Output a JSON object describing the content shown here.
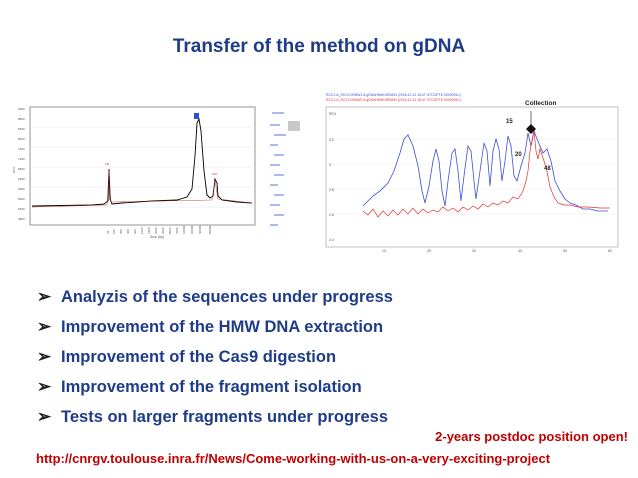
{
  "slide": {
    "title": "Transfer of the method on gDNA",
    "bullets": [
      "Analyzis of the sequences under progress",
      "Improvement of the HMW DNA extraction",
      "Improvement of the Cas9 digestion",
      "Improvement of the fragment isolation",
      "Tests on larger fragments under progress"
    ],
    "notice": "2-years postdoc position open!",
    "link": "http://cnrgv.toulouse.inra.fr/News/Come-working-with-us-on-a-very-exciting-project",
    "colors": {
      "title": "#1f3c88",
      "notice": "#c00000",
      "bullet_marker": "#1f1f1f"
    },
    "bullet_marker_icon": "arrow-bullet-icon"
  },
  "figure_right": {
    "collection_label": "Collection",
    "peak_labels": [
      "15",
      "20",
      "48"
    ],
    "legend_lines": [
      "RCC1-A_RCC1VHMW1 A.gDNAHMW.DE9AIN (2018-12-12 18:47 GTCOPTE-0000091C)",
      "RCC1-A_RCC1VHMW2 A.gDNAHMW.DE9AIN (2018-12-12 18:47 GTCOPTE-0000091C)"
    ],
    "y_ticks": [
      "3.2",
      "3",
      "2.8",
      "2.6",
      "2.4"
    ],
    "x_ticks": [
      "10",
      "20",
      "30",
      "40",
      "50",
      "60"
    ],
    "y_unit": "RFU",
    "series_colors": [
      "#3b4fd8",
      "#e03030"
    ]
  },
  "figure_left": {
    "y_unit": "RFU",
    "x_label": "Size (bp)",
    "trace_color": "#000000",
    "marker_colors": [
      "#d02020",
      "#3050d0"
    ]
  }
}
